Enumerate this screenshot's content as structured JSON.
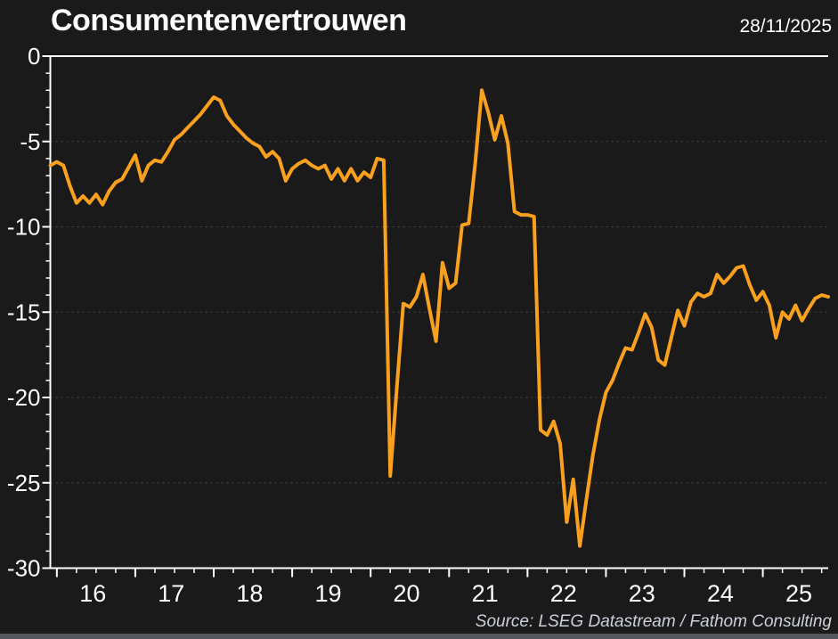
{
  "header": {
    "title": "Consumentenvertrouwen",
    "date": "28/11/2025"
  },
  "footer": {
    "source": "Source: LSEG Datastream / Fathom Consulting"
  },
  "colors": {
    "background": "#1A1A1A",
    "line": "#F9A01E",
    "axis": "#FFFFFF",
    "label_text": "#FFFFFF",
    "grid": "#4A4A46",
    "source_text": "#CBD0DB",
    "bottom_strip": "#53565B"
  },
  "chart_data": {
    "type": "line",
    "title": "Consumentenvertrouwen",
    "xlabel": "",
    "ylabel": "",
    "ylim": [
      -30,
      0
    ],
    "y_major_ticks": [
      0,
      -5,
      -10,
      -15,
      -20,
      -25,
      -30
    ],
    "y_major_tick_labels": [
      "0",
      "-5",
      "-10",
      "-15",
      "-20",
      "-25",
      "-30"
    ],
    "y_minor_tick_step": 1,
    "x_tick_labels": [
      "16",
      "17",
      "18",
      "19",
      "20",
      "21",
      "22",
      "23",
      "24",
      "25"
    ],
    "x_minor_ticks": "quarterly",
    "grid": "horizontal dashed at -5 to -25",
    "legend_position": "none",
    "frequency": "monthly",
    "x_start_label": "2015-12",
    "x_end_label": "2025-11",
    "series": [
      {
        "name": "Consumentenvertrouwen",
        "values": [
          -6.4,
          -6.2,
          -6.4,
          -7.6,
          -8.6,
          -8.2,
          -8.6,
          -8.1,
          -8.7,
          -7.9,
          -7.4,
          -7.2,
          -6.5,
          -5.8,
          -7.3,
          -6.4,
          -6.1,
          -6.2,
          -5.6,
          -4.9,
          -4.6,
          -4.2,
          -3.8,
          -3.4,
          -2.9,
          -2.4,
          -2.6,
          -3.5,
          -4.0,
          -4.4,
          -4.8,
          -5.1,
          -5.3,
          -5.9,
          -5.6,
          -6.0,
          -7.3,
          -6.6,
          -6.3,
          -6.1,
          -6.4,
          -6.6,
          -6.4,
          -7.2,
          -6.6,
          -7.3,
          -6.6,
          -7.3,
          -6.8,
          -7.1,
          -6.0,
          -6.1,
          -24.6,
          -19.5,
          -14.5,
          -14.7,
          -14.1,
          -12.8,
          -14.8,
          -16.7,
          -12.1,
          -13.6,
          -13.3,
          -9.9,
          -9.8,
          -6.3,
          -2.0,
          -3.3,
          -4.9,
          -3.5,
          -5.1,
          -9.1,
          -9.3,
          -9.3,
          -9.4,
          -21.9,
          -22.2,
          -21.4,
          -22.7,
          -27.3,
          -24.8,
          -28.7,
          -26.0,
          -23.4,
          -21.3,
          -19.7,
          -19.0,
          -18.0,
          -17.1,
          -17.2,
          -16.2,
          -15.1,
          -15.9,
          -17.8,
          -18.1,
          -16.5,
          -14.9,
          -15.8,
          -14.4,
          -13.9,
          -14.1,
          -13.9,
          -12.8,
          -13.3,
          -12.9,
          -12.4,
          -12.3,
          -13.4,
          -14.3,
          -13.8,
          -14.6,
          -16.5,
          -15.0,
          -15.4,
          -14.6,
          -15.5,
          -14.8,
          -14.2,
          -14.0,
          -14.1
        ]
      }
    ]
  }
}
